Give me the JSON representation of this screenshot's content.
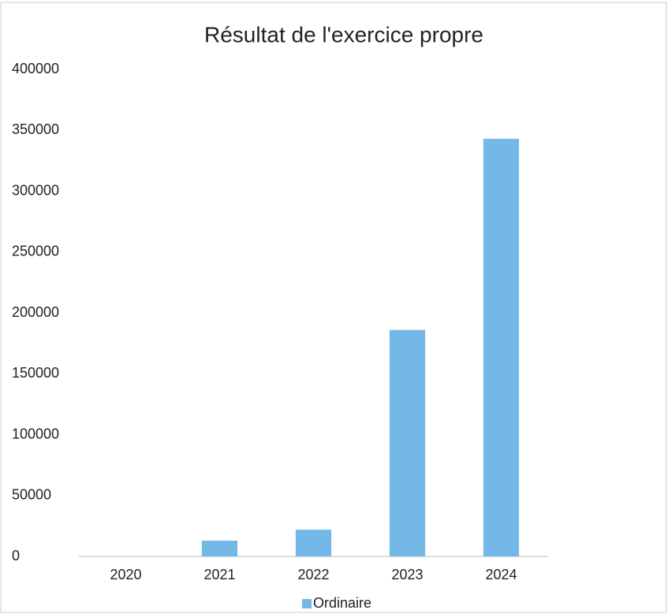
{
  "chart_data": {
    "type": "bar",
    "title": "Résultat de l'exercice propre",
    "categories": [
      "2020",
      "2021",
      "2022",
      "2023",
      "2024"
    ],
    "series": [
      {
        "name": "Ordinaire",
        "color": "#74b8e8",
        "values": [
          0,
          13000,
          22000,
          186000,
          343000
        ]
      }
    ],
    "ylim": [
      0,
      400000
    ],
    "yticks": [
      0,
      50000,
      100000,
      150000,
      200000,
      250000,
      300000,
      350000,
      400000
    ],
    "grid": false,
    "legend": "bottom"
  }
}
